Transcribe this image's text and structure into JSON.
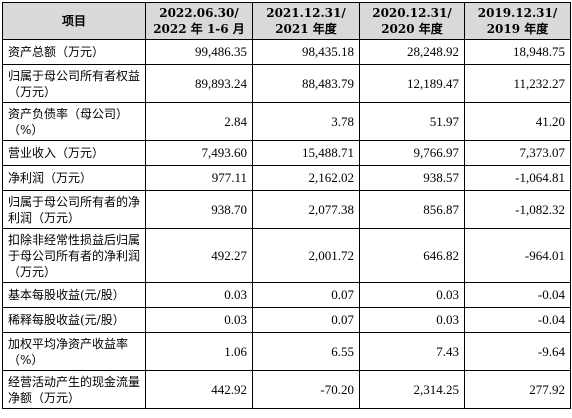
{
  "header": {
    "item": "项目",
    "periods": [
      {
        "line1": "2022.06.30/",
        "line2": "2022 年 1-6 月"
      },
      {
        "line1": "2021.12.31/",
        "line2": "2021 年度"
      },
      {
        "line1": "2020.12.31/",
        "line2": "2020 年度"
      },
      {
        "line1": "2019.12.31/",
        "line2": "2019 年度"
      }
    ]
  },
  "rows": [
    {
      "label": "资产总额（万元）",
      "values": [
        "99,486.35",
        "98,435.18",
        "28,248.92",
        "18,948.75"
      ]
    },
    {
      "label": "归属于母公司所有者权益（万元）",
      "values": [
        "89,893.24",
        "88,483.79",
        "12,189.47",
        "11,232.27"
      ]
    },
    {
      "label": "资产负债率（母公司）（%）",
      "values": [
        "2.84",
        "3.78",
        "51.97",
        "41.20"
      ]
    },
    {
      "label": "营业收入（万元）",
      "values": [
        "7,493.60",
        "15,488.71",
        "9,766.97",
        "7,373.07"
      ]
    },
    {
      "label": "净利润（万元）",
      "values": [
        "977.11",
        "2,162.02",
        "938.57",
        "-1,064.81"
      ]
    },
    {
      "label": "归属于母公司所有者的净利润（万元）",
      "values": [
        "938.70",
        "2,077.38",
        "856.87",
        "-1,082.32"
      ]
    },
    {
      "label": "扣除非经常性损益后归属于母公司所有者的净利润（万元）",
      "values": [
        "492.27",
        "2,001.72",
        "646.82",
        "-964.01"
      ]
    },
    {
      "label": "基本每股收益(元/股）",
      "values": [
        "0.03",
        "0.07",
        "0.03",
        "-0.04"
      ]
    },
    {
      "label": "稀释每股收益(元/股）",
      "values": [
        "0.03",
        "0.07",
        "0.03",
        "-0.04"
      ]
    },
    {
      "label": "加权平均净资产收益率（%）",
      "values": [
        "1.06",
        "6.55",
        "7.43",
        "-9.64"
      ]
    },
    {
      "label": "经营活动产生的现金流量净额（万元）",
      "values": [
        "442.92",
        "-70.20",
        "2,314.25",
        "277.92"
      ]
    }
  ]
}
